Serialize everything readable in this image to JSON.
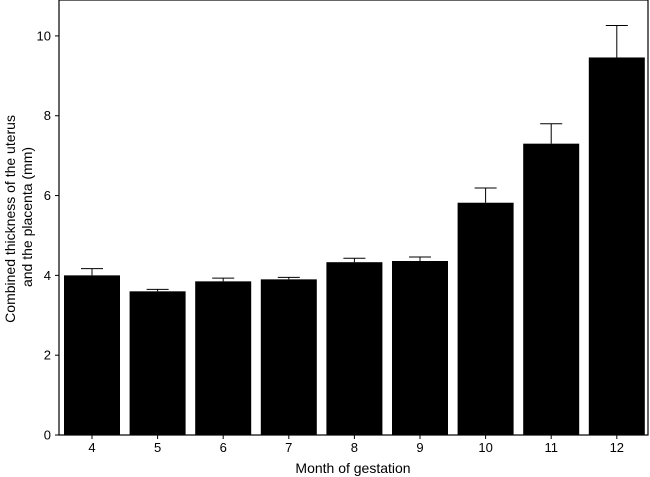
{
  "chart_data": {
    "type": "bar",
    "title": "",
    "xlabel": "Month of gestation",
    "ylabel_lines": [
      "Combined thickness of the uterus",
      "and the placenta (mm)"
    ],
    "categories": [
      "4",
      "5",
      "6",
      "7",
      "8",
      "9",
      "10",
      "11",
      "12"
    ],
    "values": [
      4.0,
      3.6,
      3.85,
      3.9,
      4.33,
      4.36,
      5.82,
      7.3,
      9.46
    ],
    "error_upper": [
      0.17,
      0.05,
      0.08,
      0.05,
      0.1,
      0.1,
      0.37,
      0.5,
      0.8
    ],
    "ylim": [
      0,
      10.9
    ],
    "yticks": [
      0,
      2,
      4,
      6,
      8,
      10
    ],
    "bar_color": "#000000",
    "grid": false,
    "legend": "none"
  }
}
